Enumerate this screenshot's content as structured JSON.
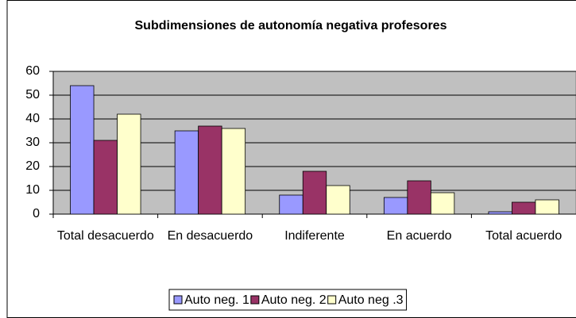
{
  "chart_data": {
    "type": "bar",
    "title": "Subdimensiones de autonomía negativa profesores",
    "categories": [
      "Total desacuerdo",
      "En desacuerdo",
      "Indiferente",
      "En acuerdo",
      "Total acuerdo"
    ],
    "series": [
      {
        "name": "Auto neg. 1",
        "color": "#9999ff",
        "values": [
          54,
          35,
          8,
          7,
          1
        ]
      },
      {
        "name": "Auto neg. 2",
        "color": "#993366",
        "values": [
          31,
          37,
          18,
          14,
          5
        ]
      },
      {
        "name": "Auto neg .3",
        "color": "#ffffcc",
        "values": [
          42,
          36,
          12,
          9,
          6
        ]
      }
    ],
    "ylim": [
      0,
      60
    ],
    "yticks": [
      0,
      10,
      20,
      30,
      40,
      50,
      60
    ],
    "grid": true,
    "legend": "bottom"
  }
}
